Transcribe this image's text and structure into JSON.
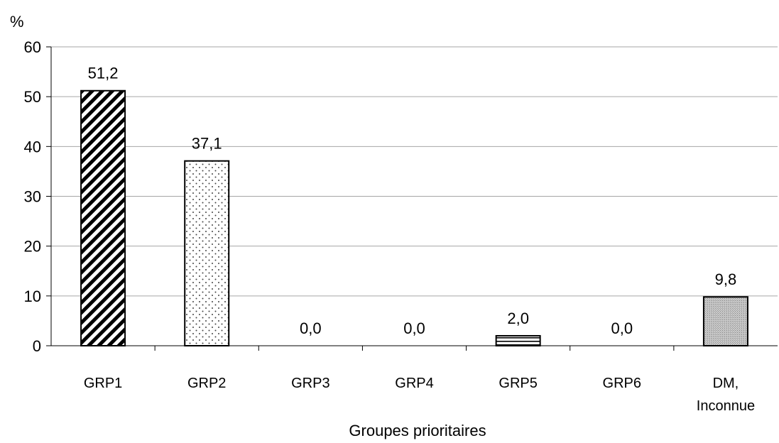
{
  "chart_data": {
    "type": "bar",
    "ylabel": "%",
    "xlabel": "Groupes prioritaires",
    "ylim": [
      0,
      60
    ],
    "yticks": [
      0,
      10,
      20,
      30,
      40,
      50,
      60
    ],
    "categories": [
      [
        "GRP1"
      ],
      [
        "GRP2"
      ],
      [
        "GRP3"
      ],
      [
        "GRP4"
      ],
      [
        "GRP5"
      ],
      [
        "GRP6"
      ],
      [
        "DM,",
        "Inconnue"
      ]
    ],
    "values": [
      51.2,
      37.1,
      0.0,
      0.0,
      2.0,
      0.0,
      9.8
    ],
    "value_labels": [
      "51,2",
      "37,1",
      "0,0",
      "0,0",
      "2,0",
      "0,0",
      "9,8"
    ],
    "patterns": [
      "diagonal-hatch",
      "dots",
      "none",
      "none",
      "horizontal-lines",
      "none",
      "grey-crosshatch"
    ],
    "grid": true
  }
}
